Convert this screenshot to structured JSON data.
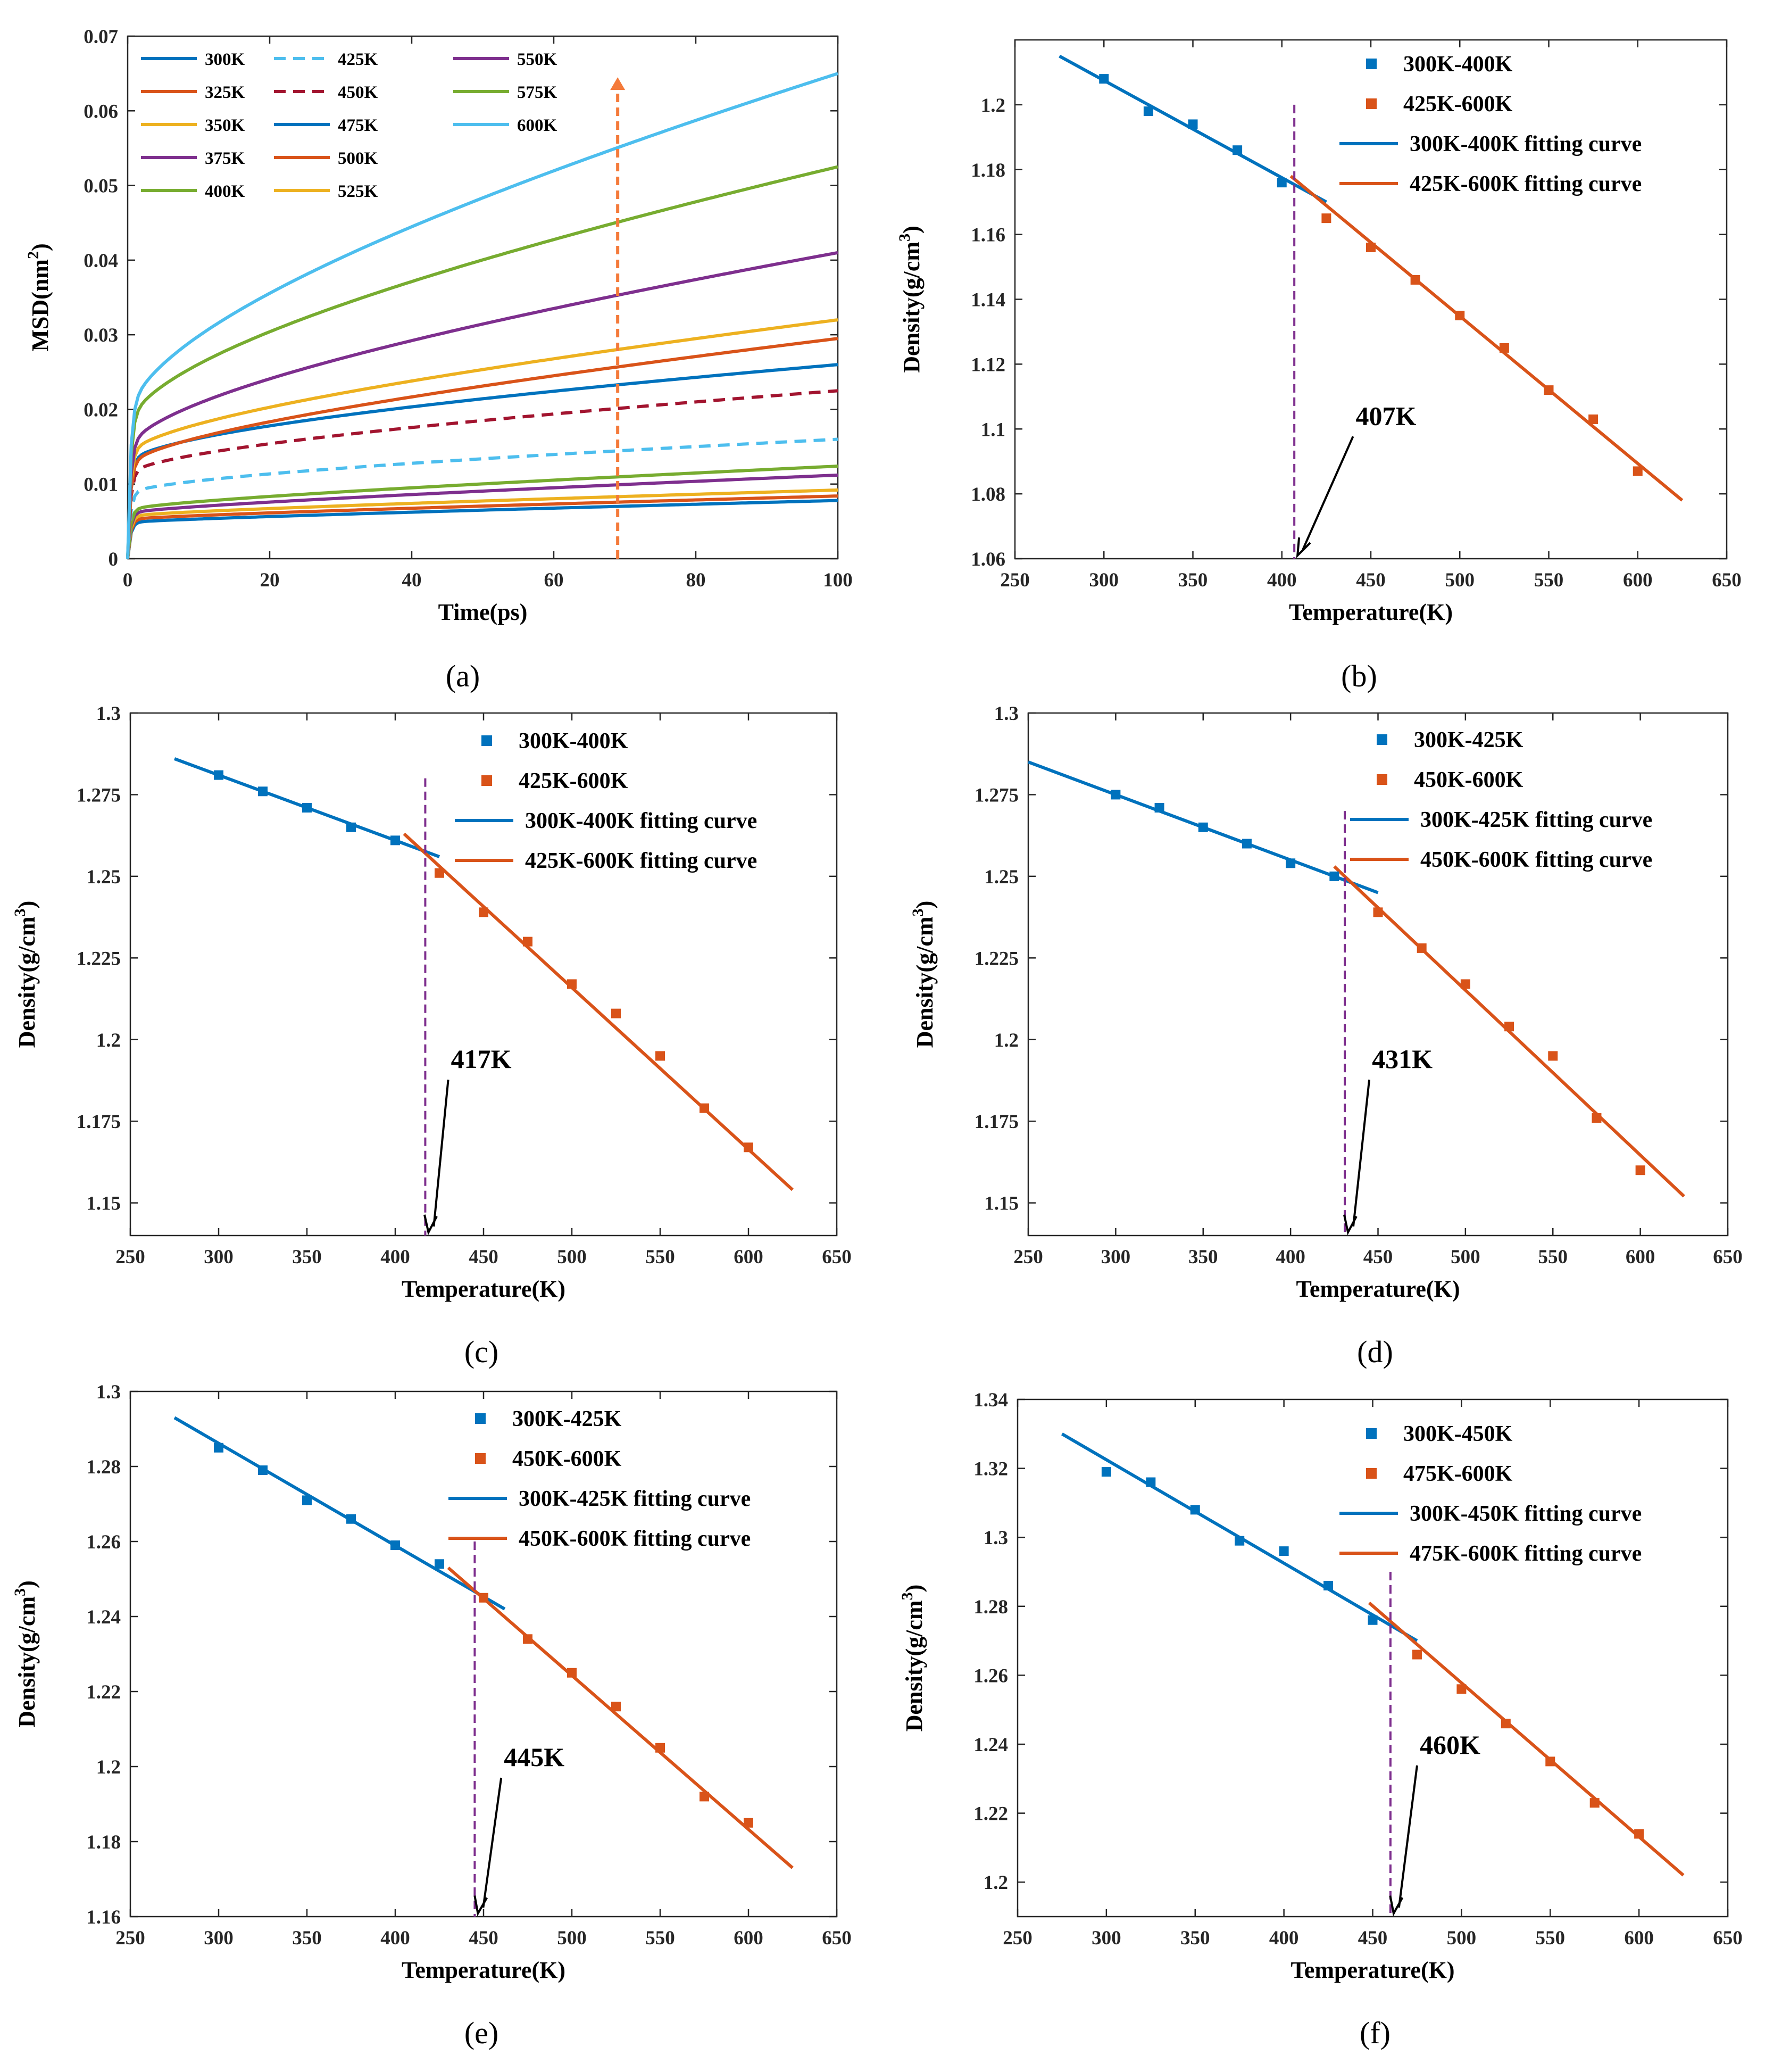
{
  "colors": {
    "blue": "#0072BD",
    "orange": "#D95319",
    "yellow": "#EDB120",
    "purple": "#7E2F8E",
    "green": "#77AC30",
    "cyan": "#4DBEEE",
    "darkred": "#A2142F",
    "vline": "#7E2F8E",
    "arrow_msd": "#F47A3A"
  },
  "chart_data": [
    {
      "id": "a",
      "type": "line",
      "caption": "(a)",
      "xlabel": "Time(ps)",
      "ylabel": "MSD(nm",
      "ylabel_sup": "2",
      "ylabel_tail": ")",
      "xlim": [
        0,
        100
      ],
      "ylim": [
        0,
        0.07
      ],
      "xticks": [
        0,
        20,
        40,
        60,
        80,
        100
      ],
      "xtick_labels": [
        "0",
        "20",
        "40",
        "60",
        "80",
        "100"
      ],
      "yticks": [
        0,
        0.01,
        0.02,
        0.03,
        0.04,
        0.05,
        0.06,
        0.07
      ],
      "ytick_labels": [
        "0",
        "0.01",
        "0.02",
        "0.03",
        "0.04",
        "0.05",
        "0.06",
        "0.07"
      ],
      "arrow_x": 69,
      "arrow_y": [
        0,
        0.0645
      ],
      "legend_columns": 3,
      "series": [
        {
          "name": "300K",
          "color": "#0072BD",
          "dash": false,
          "a": 0.0048,
          "b": 0.001,
          "c": 2e-05
        },
        {
          "name": "325K",
          "color": "#D95319",
          "dash": false,
          "a": 0.0052,
          "b": 0.0012,
          "c": 2e-05
        },
        {
          "name": "350K",
          "color": "#EDB120",
          "dash": false,
          "a": 0.0056,
          "b": 0.0016,
          "c": 2e-05
        },
        {
          "name": "375K",
          "color": "#7E2F8E",
          "dash": false,
          "a": 0.006,
          "b": 0.0022,
          "c": 3e-05
        },
        {
          "name": "400K",
          "color": "#77AC30",
          "dash": false,
          "a": 0.0064,
          "b": 0.003,
          "c": 3e-05
        },
        {
          "name": "425K",
          "color": "#4DBEEE",
          "dash": true,
          "a": 0.0085,
          "b": 0.0055,
          "c": 2e-05
        },
        {
          "name": "450K",
          "color": "#A2142F",
          "dash": true,
          "a": 0.011,
          "b": 0.0085,
          "c": 3e-05
        },
        {
          "name": "475K",
          "color": "#0072BD",
          "dash": false,
          "a": 0.0125,
          "b": 0.0105,
          "c": 3e-05
        },
        {
          "name": "500K",
          "color": "#D95319",
          "dash": false,
          "a": 0.012,
          "b": 0.0115,
          "c": 6e-05
        },
        {
          "name": "525K",
          "color": "#EDB120",
          "dash": false,
          "a": 0.0135,
          "b": 0.0125,
          "c": 6e-05
        },
        {
          "name": "550K",
          "color": "#7E2F8E",
          "dash": false,
          "a": 0.014,
          "b": 0.019,
          "c": 8e-05
        },
        {
          "name": "575K",
          "color": "#77AC30",
          "dash": false,
          "a": 0.017,
          "b": 0.0255,
          "c": 0.0001
        },
        {
          "name": "600K",
          "color": "#4DBEEE",
          "dash": false,
          "a": 0.018,
          "b": 0.033,
          "c": 0.00014
        }
      ]
    },
    {
      "id": "b",
      "type": "scatter",
      "caption": "(b)",
      "xlabel": "Temperature(K)",
      "ylabel": "Density(g/cm",
      "ylabel_sup": "3",
      "ylabel_tail": ")",
      "xlim": [
        250,
        650
      ],
      "ylim": [
        1.06,
        1.22
      ],
      "xticks": [
        250,
        300,
        350,
        400,
        450,
        500,
        550,
        600,
        650
      ],
      "xtick_labels": [
        "250",
        "300",
        "350",
        "400",
        "450",
        "500",
        "550",
        "600",
        "650"
      ],
      "yticks": [
        1.06,
        1.08,
        1.1,
        1.12,
        1.14,
        1.16,
        1.18,
        1.2
      ],
      "ytick_labels": [
        "1.06",
        "1.08",
        "1.1",
        "1.12",
        "1.14",
        "1.16",
        "1.18",
        "1.2"
      ],
      "legend": [
        "300K-400K",
        "425K-600K",
        "300K-400K fitting curve",
        "425K-600K fitting curve"
      ],
      "low_points": {
        "x": [
          300,
          325,
          350,
          375,
          400
        ],
        "y": [
          1.208,
          1.198,
          1.194,
          1.186,
          1.176
        ]
      },
      "high_points": {
        "x": [
          425,
          450,
          475,
          500,
          525,
          550,
          575,
          600
        ],
        "y": [
          1.165,
          1.156,
          1.146,
          1.135,
          1.125,
          1.112,
          1.103,
          1.087
        ]
      },
      "low_fit": {
        "x": [
          275,
          425
        ],
        "y": [
          1.215,
          1.17
        ]
      },
      "high_fit": {
        "x": [
          405,
          625
        ],
        "y": [
          1.178,
          1.078
        ]
      },
      "transition": 407,
      "transition_label": "407K",
      "vline_top": 1.2,
      "annot_xy": [
        440,
        1.1
      ]
    },
    {
      "id": "c",
      "type": "scatter",
      "caption": "(c)",
      "xlabel": "Temperature(K)",
      "ylabel": "Density(g/cm",
      "ylabel_sup": "3",
      "ylabel_tail": ")",
      "xlim": [
        250,
        650
      ],
      "ylim": [
        1.14,
        1.3
      ],
      "xticks": [
        250,
        300,
        350,
        400,
        450,
        500,
        550,
        600,
        650
      ],
      "xtick_labels": [
        "250",
        "300",
        "350",
        "400",
        "450",
        "500",
        "550",
        "600",
        "650"
      ],
      "yticks": [
        1.15,
        1.175,
        1.2,
        1.225,
        1.25,
        1.275,
        1.3
      ],
      "ytick_labels": [
        "1.15",
        "1.175",
        "1.2",
        "1.225",
        "1.25",
        "1.275",
        "1.3"
      ],
      "legend": [
        "300K-400K",
        "425K-600K",
        "300K-400K fitting curve",
        "425K-600K fitting curve"
      ],
      "low_points": {
        "x": [
          300,
          325,
          350,
          375,
          400
        ],
        "y": [
          1.281,
          1.276,
          1.271,
          1.265,
          1.261
        ]
      },
      "high_points": {
        "x": [
          425,
          450,
          475,
          500,
          525,
          550,
          575,
          600
        ],
        "y": [
          1.251,
          1.239,
          1.23,
          1.217,
          1.208,
          1.195,
          1.179,
          1.167
        ]
      },
      "low_fit": {
        "x": [
          275,
          425
        ],
        "y": [
          1.286,
          1.256
        ]
      },
      "high_fit": {
        "x": [
          405,
          625
        ],
        "y": [
          1.263,
          1.154
        ]
      },
      "transition": 417,
      "transition_label": "417K",
      "vline_top": 1.28,
      "annot_xy": [
        430,
        1.19
      ]
    },
    {
      "id": "d",
      "type": "scatter",
      "caption": "(d)",
      "xlabel": "Temperature(K)",
      "ylabel": "Density(g/cm",
      "ylabel_sup": "3",
      "ylabel_tail": ")",
      "xlim": [
        250,
        650
      ],
      "ylim": [
        1.14,
        1.3
      ],
      "xticks": [
        250,
        300,
        350,
        400,
        450,
        500,
        550,
        600,
        650
      ],
      "xtick_labels": [
        "250",
        "300",
        "350",
        "400",
        "450",
        "500",
        "550",
        "600",
        "650"
      ],
      "yticks": [
        1.15,
        1.175,
        1.2,
        1.225,
        1.25,
        1.275,
        1.3
      ],
      "ytick_labels": [
        "1.15",
        "1.175",
        "1.2",
        "1.225",
        "1.25",
        "1.275",
        "1.3"
      ],
      "legend": [
        "300K-425K",
        "450K-600K",
        "300K-425K fitting curve",
        "450K-600K fitting curve"
      ],
      "low_points": {
        "x": [
          300,
          325,
          350,
          375,
          400,
          425
        ],
        "y": [
          1.275,
          1.271,
          1.265,
          1.26,
          1.254,
          1.25
        ]
      },
      "high_points": {
        "x": [
          450,
          475,
          500,
          525,
          550,
          575,
          600
        ],
        "y": [
          1.239,
          1.228,
          1.217,
          1.204,
          1.195,
          1.176,
          1.16
        ]
      },
      "low_fit": {
        "x": [
          250,
          450
        ],
        "y": [
          1.285,
          1.245
        ]
      },
      "high_fit": {
        "x": [
          425,
          625
        ],
        "y": [
          1.253,
          1.152
        ]
      },
      "transition": 431,
      "transition_label": "431K",
      "vline_top": 1.27,
      "annot_xy": [
        445,
        1.19
      ]
    },
    {
      "id": "e",
      "type": "scatter",
      "caption": "(e)",
      "xlabel": "Temperature(K)",
      "ylabel": "Density(g/cm",
      "ylabel_sup": "3",
      "ylabel_tail": ")",
      "xlim": [
        250,
        650
      ],
      "ylim": [
        1.16,
        1.3
      ],
      "xticks": [
        250,
        300,
        350,
        400,
        450,
        500,
        550,
        600,
        650
      ],
      "xtick_labels": [
        "250",
        "300",
        "350",
        "400",
        "450",
        "500",
        "550",
        "600",
        "650"
      ],
      "yticks": [
        1.16,
        1.18,
        1.2,
        1.22,
        1.24,
        1.26,
        1.28,
        1.3
      ],
      "ytick_labels": [
        "1.16",
        "1.18",
        "1.2",
        "1.22",
        "1.24",
        "1.26",
        "1.28",
        "1.3"
      ],
      "legend": [
        "300K-425K",
        "450K-600K",
        "300K-425K fitting curve",
        "450K-600K fitting curve"
      ],
      "low_points": {
        "x": [
          300,
          325,
          350,
          375,
          400,
          425
        ],
        "y": [
          1.285,
          1.279,
          1.271,
          1.266,
          1.259,
          1.254
        ]
      },
      "high_points": {
        "x": [
          450,
          475,
          500,
          525,
          550,
          575,
          600
        ],
        "y": [
          1.245,
          1.234,
          1.225,
          1.216,
          1.205,
          1.192,
          1.185
        ]
      },
      "low_fit": {
        "x": [
          275,
          462
        ],
        "y": [
          1.293,
          1.242
        ]
      },
      "high_fit": {
        "x": [
          430,
          625
        ],
        "y": [
          1.253,
          1.173
        ]
      },
      "transition": 445,
      "transition_label": "445K",
      "vline_top": 1.26,
      "annot_xy": [
        460,
        1.199
      ]
    },
    {
      "id": "f",
      "type": "scatter",
      "caption": "(f)",
      "xlabel": "Temperature(K)",
      "ylabel": "Density(g/cm",
      "ylabel_sup": "3",
      "ylabel_tail": ")",
      "xlim": [
        250,
        650
      ],
      "ylim": [
        1.19,
        1.34
      ],
      "xticks": [
        250,
        300,
        350,
        400,
        450,
        500,
        550,
        600,
        650
      ],
      "xtick_labels": [
        "250",
        "300",
        "350",
        "400",
        "450",
        "500",
        "550",
        "600",
        "650"
      ],
      "yticks": [
        1.2,
        1.22,
        1.24,
        1.26,
        1.28,
        1.3,
        1.32,
        1.34
      ],
      "ytick_labels": [
        "1.2",
        "1.22",
        "1.24",
        "1.26",
        "1.28",
        "1.3",
        "1.32",
        "1.34"
      ],
      "legend": [
        "300K-450K",
        "475K-600K",
        "300K-450K fitting curve",
        "475K-600K fitting curve"
      ],
      "low_points": {
        "x": [
          300,
          325,
          350,
          375,
          400,
          425,
          450
        ],
        "y": [
          1.319,
          1.316,
          1.308,
          1.299,
          1.296,
          1.286,
          1.276
        ]
      },
      "high_points": {
        "x": [
          475,
          500,
          525,
          550,
          575,
          600
        ],
        "y": [
          1.266,
          1.256,
          1.246,
          1.235,
          1.223,
          1.214
        ]
      },
      "low_fit": {
        "x": [
          275,
          475
        ],
        "y": [
          1.33,
          1.27
        ]
      },
      "high_fit": {
        "x": [
          448,
          625
        ],
        "y": [
          1.281,
          1.202
        ]
      },
      "transition": 460,
      "transition_label": "460K",
      "vline_top": 1.29,
      "annot_xy": [
        475,
        1.236
      ]
    }
  ]
}
